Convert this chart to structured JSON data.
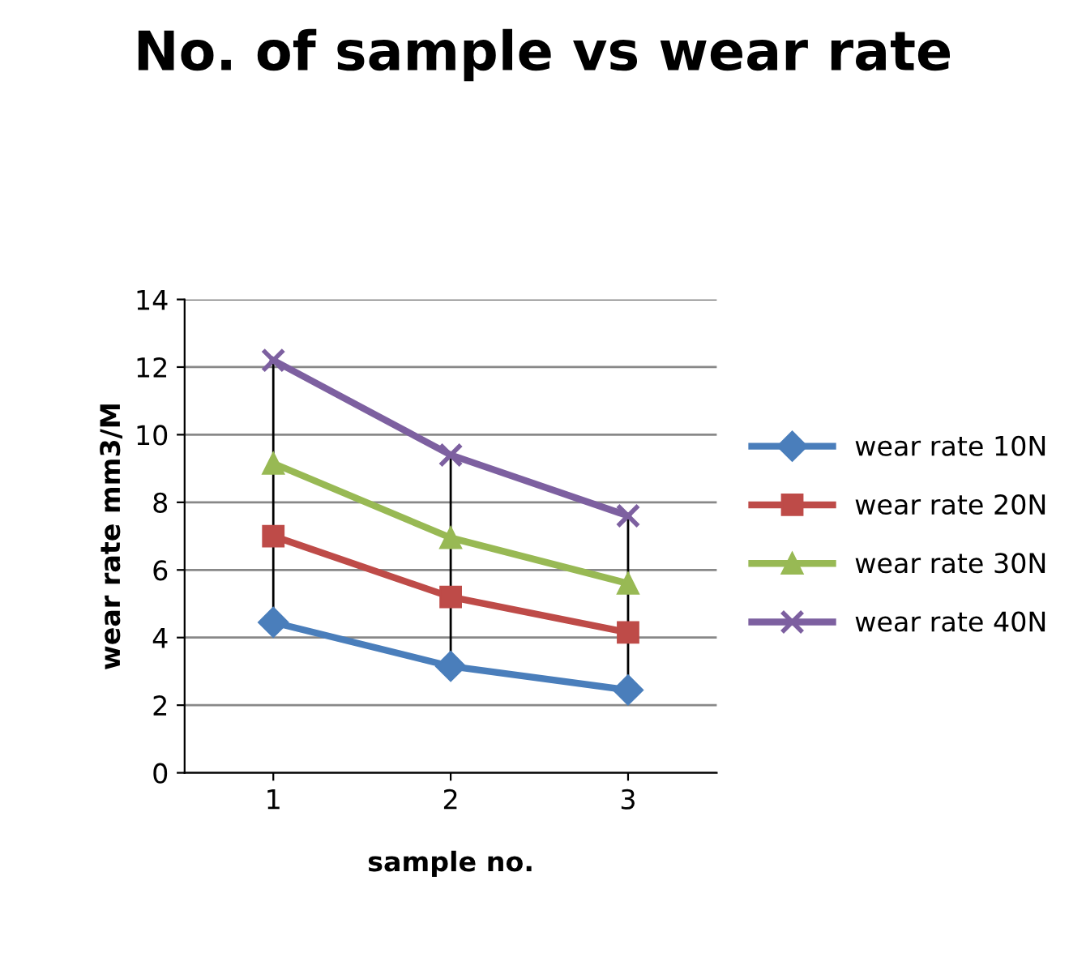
{
  "chart_data": {
    "type": "line",
    "title": "No. of sample vs wear rate",
    "xlabel": "sample no.",
    "ylabel": "wear rate mm3/M",
    "categories": [
      "1",
      "2",
      "3"
    ],
    "series": [
      {
        "name": "wear rate 10N",
        "color": "#4a7ebb",
        "values": [
          4.45,
          3.15,
          2.45
        ],
        "marker": "diamond"
      },
      {
        "name": "wear rate 20N",
        "color": "#be4b48",
        "values": [
          7.0,
          5.2,
          4.15
        ],
        "marker": "square"
      },
      {
        "name": "wear rate 30N",
        "color": "#98b954",
        "values": [
          9.15,
          6.95,
          5.6
        ],
        "marker": "triangle"
      },
      {
        "name": "wear rate 40N",
        "color": "#7d60a0",
        "values": [
          12.2,
          9.4,
          7.6
        ],
        "marker": "cross"
      }
    ],
    "ylim": [
      0,
      14
    ],
    "yticks": [
      0,
      2,
      4,
      6,
      8,
      10,
      12,
      14
    ],
    "grid": "y",
    "legend": "right",
    "line_style": "solid",
    "ref_lines": [
      {
        "axis": "x",
        "value": "1",
        "label": null,
        "color": "#000000"
      },
      {
        "axis": "x",
        "value": "2",
        "label": null,
        "color": "#000000"
      },
      {
        "axis": "x",
        "value": "3",
        "label": null,
        "color": "#000000"
      }
    ]
  }
}
